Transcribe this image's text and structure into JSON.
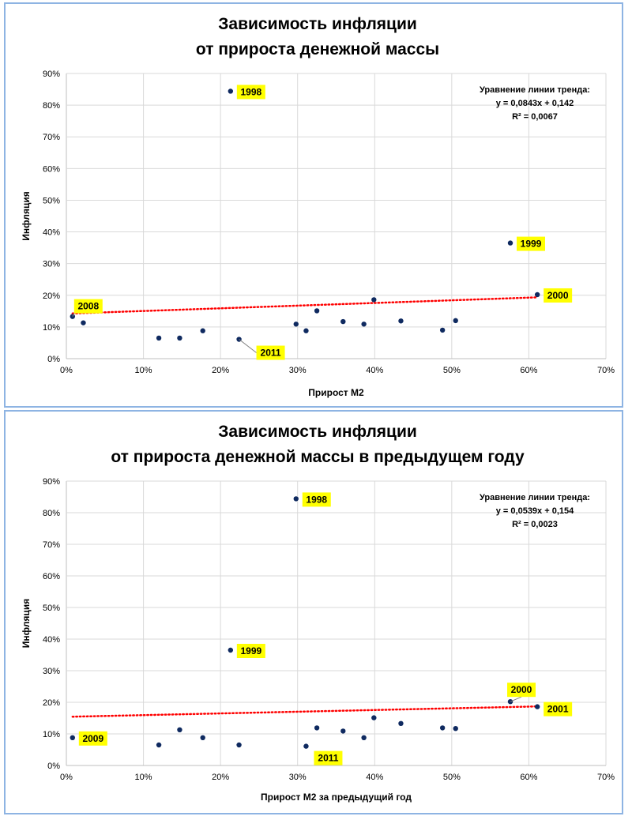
{
  "colors": {
    "point": "#0f2a60",
    "trend": "#ff0000",
    "label_bg": "#ffff00",
    "grid": "#d9d9d9",
    "frame": "#8eb4e3"
  },
  "chart_data": [
    {
      "type": "scatter",
      "title": [
        "Зависимость инфляции",
        "от прироста денежной массы"
      ],
      "xlabel": "Прирост М2",
      "ylabel": "Инфляция",
      "xlim": [
        0,
        0.7
      ],
      "ylim": [
        0,
        0.9
      ],
      "x_ticks": [
        "0%",
        "10%",
        "20%",
        "30%",
        "40%",
        "50%",
        "60%",
        "70%"
      ],
      "y_ticks": [
        "0%",
        "10%",
        "20%",
        "30%",
        "40%",
        "50%",
        "60%",
        "70%",
        "80%",
        "90%"
      ],
      "grid": true,
      "points": [
        {
          "x": 0.008,
          "y": 0.133
        },
        {
          "x": 0.022,
          "y": 0.113
        },
        {
          "x": 0.12,
          "y": 0.065
        },
        {
          "x": 0.147,
          "y": 0.065
        },
        {
          "x": 0.177,
          "y": 0.088
        },
        {
          "x": 0.213,
          "y": 0.844
        },
        {
          "x": 0.224,
          "y": 0.061
        },
        {
          "x": 0.298,
          "y": 0.109
        },
        {
          "x": 0.311,
          "y": 0.088
        },
        {
          "x": 0.325,
          "y": 0.151
        },
        {
          "x": 0.359,
          "y": 0.117
        },
        {
          "x": 0.386,
          "y": 0.109
        },
        {
          "x": 0.399,
          "y": 0.186
        },
        {
          "x": 0.434,
          "y": 0.119
        },
        {
          "x": 0.488,
          "y": 0.09
        },
        {
          "x": 0.505,
          "y": 0.12
        },
        {
          "x": 0.576,
          "y": 0.365
        },
        {
          "x": 0.611,
          "y": 0.202
        }
      ],
      "trendline": {
        "slope": 0.0843,
        "intercept": 0.142,
        "x_range": [
          0.008,
          0.611
        ]
      },
      "equation_lines": [
        "Уравнение линии тренда:",
        "y = 0,0843x + 0,142",
        "R² = 0,0067"
      ],
      "annotations": [
        {
          "text": "1998",
          "point": 5
        },
        {
          "text": "1999",
          "point": 16
        },
        {
          "text": "2000",
          "point": 17
        },
        {
          "text": "2008",
          "point": 0
        },
        {
          "text": "2011",
          "point": 6
        }
      ]
    },
    {
      "type": "scatter",
      "title": [
        "Зависимость инфляции",
        "от прироста денежной массы в предыдущем году"
      ],
      "xlabel": "Прирост М2 за предыдущий год",
      "ylabel": "Инфляция",
      "xlim": [
        0,
        0.7
      ],
      "ylim": [
        0,
        0.9
      ],
      "x_ticks": [
        "0%",
        "10%",
        "20%",
        "30%",
        "40%",
        "50%",
        "60%",
        "70%"
      ],
      "y_ticks": [
        "0%",
        "10%",
        "20%",
        "30%",
        "40%",
        "50%",
        "60%",
        "70%",
        "80%",
        "90%"
      ],
      "grid": true,
      "points": [
        {
          "x": 0.008,
          "y": 0.088
        },
        {
          "x": 0.12,
          "y": 0.065
        },
        {
          "x": 0.147,
          "y": 0.113
        },
        {
          "x": 0.177,
          "y": 0.088
        },
        {
          "x": 0.213,
          "y": 0.365
        },
        {
          "x": 0.224,
          "y": 0.065
        },
        {
          "x": 0.298,
          "y": 0.844
        },
        {
          "x": 0.311,
          "y": 0.061
        },
        {
          "x": 0.325,
          "y": 0.119
        },
        {
          "x": 0.359,
          "y": 0.109
        },
        {
          "x": 0.386,
          "y": 0.088
        },
        {
          "x": 0.399,
          "y": 0.151
        },
        {
          "x": 0.434,
          "y": 0.133
        },
        {
          "x": 0.488,
          "y": 0.119
        },
        {
          "x": 0.505,
          "y": 0.117
        },
        {
          "x": 0.576,
          "y": 0.202
        },
        {
          "x": 0.611,
          "y": 0.186
        }
      ],
      "trendline": {
        "slope": 0.0539,
        "intercept": 0.154,
        "x_range": [
          0.008,
          0.611
        ]
      },
      "equation_lines": [
        "Уравнение линии тренда:",
        "y = 0,0539x + 0,154",
        "R² = 0,0023"
      ],
      "annotations": [
        {
          "text": "1998",
          "point": 6
        },
        {
          "text": "1999",
          "point": 4
        },
        {
          "text": "2000",
          "point": 15
        },
        {
          "text": "2001",
          "point": 16
        },
        {
          "text": "2009",
          "point": 0
        },
        {
          "text": "2011",
          "point": 7
        }
      ]
    }
  ]
}
